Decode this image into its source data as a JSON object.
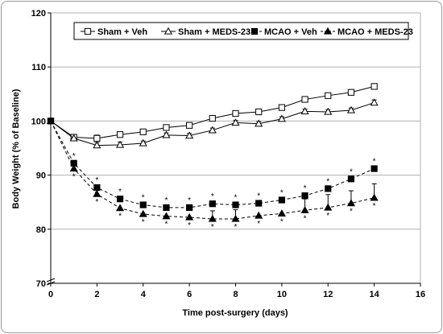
{
  "chart_data": {
    "type": "line",
    "title": "",
    "xlabel": "Time post-surgery (days)",
    "ylabel": "Body Weight (% of Baseline)",
    "xlim": [
      0,
      16
    ],
    "ylim": [
      70,
      120
    ],
    "x_ticks": [
      "0",
      "2",
      "4",
      "6",
      "8",
      "10",
      "12",
      "14",
      "16"
    ],
    "y_ticks": [
      "70",
      "80",
      "90",
      "100",
      "110",
      "120"
    ],
    "grid": "horizontal",
    "legend_position": "top",
    "x": [
      0,
      1,
      2,
      3,
      4,
      5,
      6,
      7,
      8,
      9,
      10,
      11,
      12,
      13,
      14
    ],
    "series": [
      {
        "name": "Sham + Veh",
        "marker": "open-square",
        "line": "solid",
        "values": [
          100,
          97.0,
          96.8,
          97.5,
          98.0,
          98.8,
          99.2,
          100.5,
          101.4,
          101.7,
          102.5,
          104.0,
          104.7,
          105.3,
          106.4
        ],
        "error": [
          0,
          0,
          0.6,
          0.4,
          0.4,
          0.4,
          0.4,
          0.4,
          0.4,
          0.4,
          0.4,
          0.5,
          0.5,
          0.5,
          0.5
        ]
      },
      {
        "name": "Sham + MEDS-23",
        "marker": "open-triangle",
        "line": "solid",
        "values": [
          100,
          96.8,
          95.5,
          95.6,
          95.9,
          97.4,
          97.3,
          98.3,
          99.7,
          99.5,
          100.4,
          101.8,
          101.7,
          102.0,
          103.4
        ],
        "error": [
          0,
          0,
          0.5,
          0.5,
          0.4,
          0.4,
          0.4,
          0.4,
          0.4,
          0.4,
          0.4,
          0.4,
          0.4,
          0.4,
          0.5
        ]
      },
      {
        "name": "MCAO + Veh",
        "marker": "filled-square",
        "line": "dashed",
        "values": [
          100,
          92.2,
          87.7,
          85.6,
          84.5,
          84.0,
          84.0,
          84.7,
          84.5,
          84.8,
          85.4,
          86.2,
          87.5,
          89.3,
          91.2
        ],
        "error": [
          0,
          0,
          0,
          0,
          0,
          0,
          0,
          0,
          0,
          0,
          0,
          0,
          0,
          0,
          0
        ]
      },
      {
        "name": "MCAO + MEDS-23",
        "marker": "filled-triangle",
        "line": "dashed",
        "values": [
          100,
          91.2,
          86.5,
          83.9,
          82.8,
          82.4,
          82.2,
          81.9,
          81.9,
          82.5,
          82.9,
          83.5,
          84.0,
          84.8,
          85.8
        ],
        "error": [
          0,
          0,
          0,
          0,
          0,
          0,
          0,
          1.5,
          1.7,
          0,
          0,
          2.1,
          2.4,
          2.3,
          2.6
        ]
      }
    ],
    "significance_marker": "*"
  }
}
